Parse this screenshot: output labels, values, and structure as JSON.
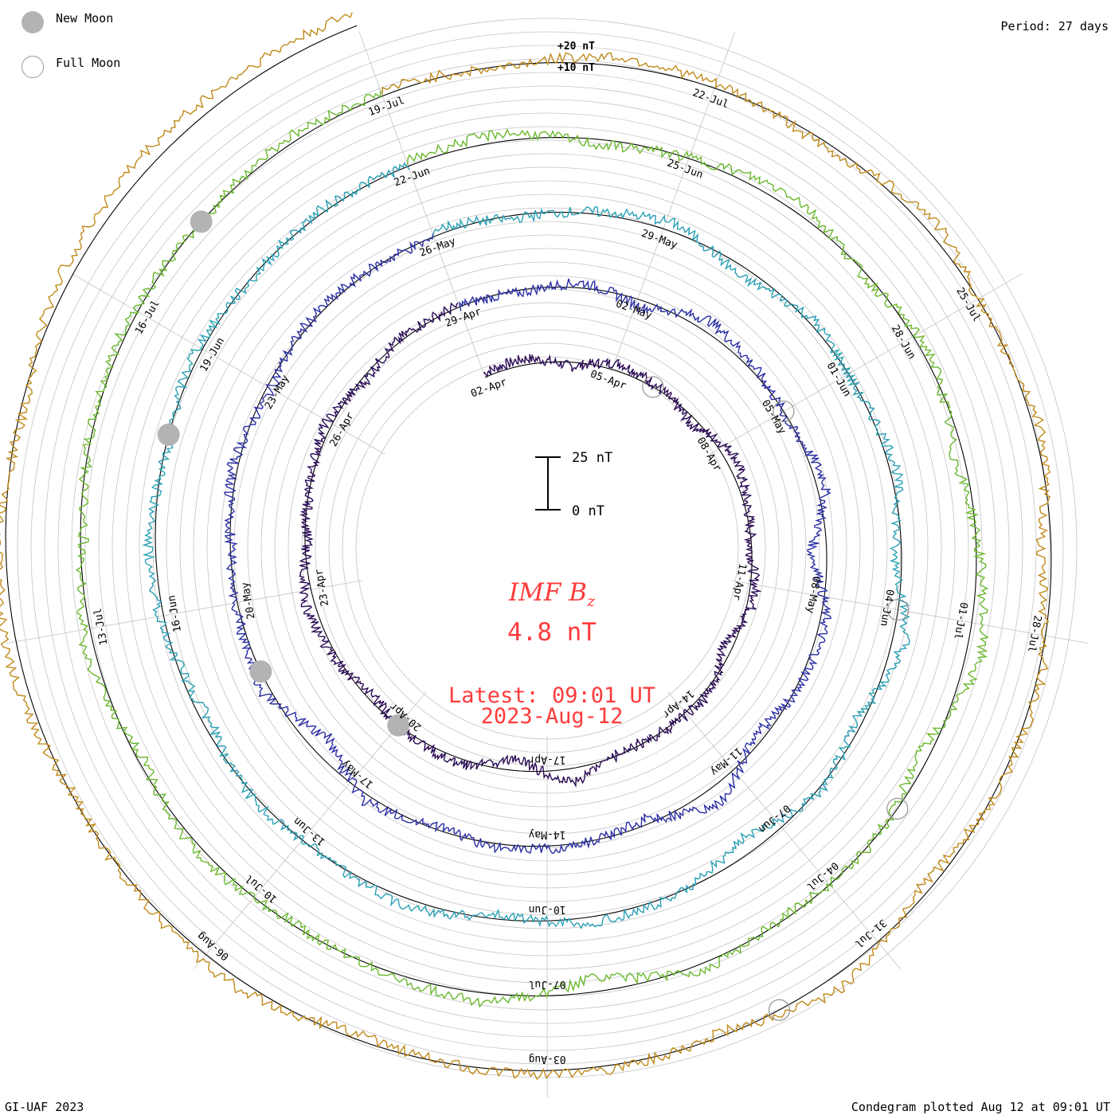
{
  "legend": {
    "new_moon": "New Moon",
    "full_moon": "Full Moon"
  },
  "header": {
    "period": "Period: 27 days"
  },
  "ring_scale": {
    "upper": "+20 nT",
    "lower": "+10 nT"
  },
  "scale_bar": {
    "top": "25 nT",
    "bottom": "0 nT"
  },
  "center": {
    "title_main": "IMF B",
    "title_sub": "z",
    "value": "4.8 nT",
    "latest": "Latest: 09:01 UT",
    "date": "2023-Aug-12"
  },
  "footer": {
    "left": "GI-UAF 2023",
    "right": "Condegram plotted Aug 12 at 09:01 UT"
  },
  "colors": {
    "ring_grid": "#c4c4c4",
    "zero_circle": "#000000",
    "moon": "#b3b3b3",
    "title": "#ff3b3b"
  },
  "chart_data": {
    "type": "line",
    "variant": "condegram spiral",
    "quantity": "IMF Bz",
    "period_days": 27,
    "units": "nT",
    "rotations": [
      {
        "start": "2023-Apr-02",
        "end": "2023-Apr-29",
        "color": "#2a0b55",
        "values": [
          1.6,
          2.4,
          -1.8,
          3.2,
          0.8,
          -2.6,
          4.1,
          1.2,
          -0.6,
          2.8,
          -3.4,
          1.9,
          0.4,
          -1.2,
          5.6,
          -4.8,
          2.2,
          0.9,
          -2.1,
          1.4,
          3.6,
          -0.8,
          0.2,
          2.6,
          -1.6,
          1.1,
          0.5
        ]
      },
      {
        "start": "2023-Apr-29",
        "end": "2023-May-26",
        "color": "#2b2fa5",
        "values": [
          0.4,
          -1.2,
          2.1,
          -2.8,
          4.6,
          1.5,
          -0.9,
          3.8,
          -6.2,
          2.4,
          1.3,
          -3.6,
          6.8,
          -2.2,
          0.6,
          1.8,
          -1.4,
          2.9,
          -7.4,
          3.2,
          0.8,
          -0.4,
          2.2,
          -1.9,
          1.1,
          0.6,
          -0.8
        ]
      },
      {
        "start": "2023-May-26",
        "end": "2023-Jun-22",
        "color": "#2aa0b4",
        "values": [
          2.6,
          -1.4,
          0.8,
          3.4,
          -4.2,
          1.9,
          -0.6,
          2.8,
          -3.1,
          5.2,
          -2.6,
          1.4,
          -6.4,
          0.9,
          2.2,
          -1.8,
          3.6,
          -0.4,
          1.7,
          -2.9,
          0.6,
          3.1,
          -1.1,
          2.4,
          -0.7,
          1.3,
          0.2
        ]
      },
      {
        "start": "2023-Jun-22",
        "end": "2023-Jul-19",
        "color": "#6ab82e",
        "values": [
          1.8,
          3.2,
          -2.4,
          0.6,
          4.8,
          -1.6,
          2.4,
          -3.8,
          1.2,
          6.1,
          -4.4,
          0.8,
          -1.4,
          2.6,
          -5.6,
          3.8,
          1.1,
          -0.9,
          2.8,
          -2.2,
          4.2,
          -1.3,
          0.5,
          1.9,
          -0.6,
          2.7,
          0.9
        ]
      },
      {
        "start": "2023-Jul-19",
        "end": "2023-Aug-15",
        "color": "#c08a1a",
        "values": [
          2.2,
          -0.8,
          3.6,
          1.4,
          -2.6,
          4.8,
          -1.2,
          2.9,
          -4.6,
          1.6,
          0.4,
          -3.2,
          5.8,
          -1.8,
          2.1,
          0.7,
          -2.4,
          3.4,
          1.2,
          -0.6,
          4.4,
          2.8,
          -1.6,
          3.8,
          5.2,
          4.6,
          4.8
        ]
      }
    ],
    "date_labels": [
      [
        "02-Apr",
        "05-Apr",
        "08-Apr",
        "11-Apr",
        "14-Apr",
        "17-Apr",
        "20-Apr",
        "23-Apr",
        "26-Apr"
      ],
      [
        "29-Apr",
        "02-May",
        "05-May",
        "08-May",
        "11-May",
        "14-May",
        "17-May",
        "20-May",
        "23-May"
      ],
      [
        "26-May",
        "29-May",
        "01-Jun",
        "04-Jun",
        "07-Jun",
        "10-Jun",
        "13-Jun",
        "16-Jun",
        "19-Jun"
      ],
      [
        "22-Jun",
        "25-Jun",
        "28-Jun",
        "01-Jul",
        "04-Jul",
        "07-Jul",
        "10-Jul",
        "13-Jul",
        "16-Jul"
      ],
      [
        "19-Jul",
        "22-Jul",
        "25-Jul",
        "28-Jul",
        "31-Jul",
        "03-Aug",
        "06-Aug"
      ]
    ],
    "new_moons": [
      "2023-Apr-20",
      "2023-May-19",
      "2023-Jun-18",
      "2023-Jul-17"
    ],
    "full_moons": [
      "2023-Apr-06",
      "2023-May-05",
      "2023-Jun-04",
      "2023-Jul-03",
      "2023-Aug-01"
    ],
    "latest_value": 4.8,
    "latest_time": "2023-Aug-12 09:01 UT"
  }
}
